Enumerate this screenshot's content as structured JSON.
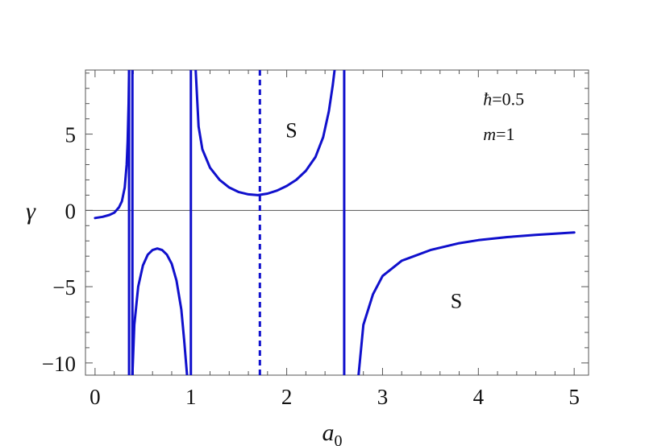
{
  "chart_data": {
    "type": "line",
    "title": "",
    "xlabel": "a",
    "xlabel_sub": "0",
    "ylabel": "γ",
    "xlim": [
      -0.1,
      5.15
    ],
    "ylim": [
      -10.8,
      9.2
    ],
    "x_ticks": [
      0,
      1,
      2,
      3,
      4,
      5
    ],
    "y_ticks": [
      -10,
      -5,
      0,
      5
    ],
    "x_tick_labels": [
      "0",
      "1",
      "2",
      "3",
      "4",
      "5"
    ],
    "y_tick_labels": [
      "−10",
      "−5",
      "0",
      "5"
    ],
    "zero_line": true,
    "grid": false,
    "legend": "none",
    "line_color": "#1010cc",
    "annotations": [
      {
        "text": "ħ=0.5",
        "x": 4.05,
        "y": 6.9
      },
      {
        "text": "m=1",
        "x": 4.05,
        "y": 4.6
      }
    ],
    "region_labels": [
      {
        "text": "S",
        "x": 2.05,
        "y": 4.8
      },
      {
        "text": "S",
        "x": 3.77,
        "y": -6.4
      }
    ],
    "vertical_lines": [
      {
        "x": 0.355,
        "style": "solid"
      },
      {
        "x": 0.39,
        "style": "solid"
      },
      {
        "x": 1.0,
        "style": "solid"
      },
      {
        "x": 2.6,
        "style": "solid"
      },
      {
        "x": 1.72,
        "style": "dashed"
      }
    ],
    "series": [
      {
        "style": "solid",
        "points": [
          [
            0.0,
            -0.5
          ],
          [
            0.08,
            -0.42
          ],
          [
            0.15,
            -0.3
          ],
          [
            0.2,
            -0.15
          ],
          [
            0.25,
            0.2
          ],
          [
            0.28,
            0.6
          ],
          [
            0.31,
            1.5
          ],
          [
            0.33,
            3.0
          ],
          [
            0.34,
            4.5
          ],
          [
            0.35,
            7.0
          ],
          [
            0.355,
            9.2
          ]
        ]
      },
      {
        "style": "solid",
        "points": [
          [
            0.39,
            -10.8
          ],
          [
            0.41,
            -7.5
          ],
          [
            0.45,
            -5.0
          ],
          [
            0.5,
            -3.6
          ],
          [
            0.55,
            -2.9
          ],
          [
            0.6,
            -2.6
          ],
          [
            0.65,
            -2.5
          ],
          [
            0.7,
            -2.6
          ],
          [
            0.75,
            -2.9
          ],
          [
            0.8,
            -3.5
          ],
          [
            0.85,
            -4.6
          ],
          [
            0.9,
            -6.5
          ],
          [
            0.93,
            -8.5
          ],
          [
            0.96,
            -10.8
          ]
        ]
      },
      {
        "style": "solid",
        "points": [
          [
            1.05,
            9.2
          ],
          [
            1.08,
            5.5
          ],
          [
            1.12,
            4.0
          ],
          [
            1.2,
            2.8
          ],
          [
            1.3,
            2.0
          ],
          [
            1.4,
            1.5
          ],
          [
            1.5,
            1.2
          ],
          [
            1.6,
            1.05
          ],
          [
            1.7,
            1.0
          ],
          [
            1.8,
            1.1
          ],
          [
            1.9,
            1.3
          ],
          [
            2.0,
            1.6
          ],
          [
            2.1,
            2.0
          ],
          [
            2.2,
            2.6
          ],
          [
            2.3,
            3.5
          ],
          [
            2.38,
            4.8
          ],
          [
            2.44,
            6.5
          ],
          [
            2.48,
            8.2
          ],
          [
            2.5,
            9.2
          ]
        ]
      },
      {
        "style": "solid",
        "points": [
          [
            2.75,
            -10.8
          ],
          [
            2.8,
            -7.5
          ],
          [
            2.9,
            -5.5
          ],
          [
            3.0,
            -4.3
          ],
          [
            3.2,
            -3.3
          ],
          [
            3.5,
            -2.6
          ],
          [
            3.8,
            -2.15
          ],
          [
            4.0,
            -1.95
          ],
          [
            4.3,
            -1.75
          ],
          [
            4.6,
            -1.6
          ],
          [
            5.0,
            -1.45
          ]
        ]
      }
    ]
  }
}
